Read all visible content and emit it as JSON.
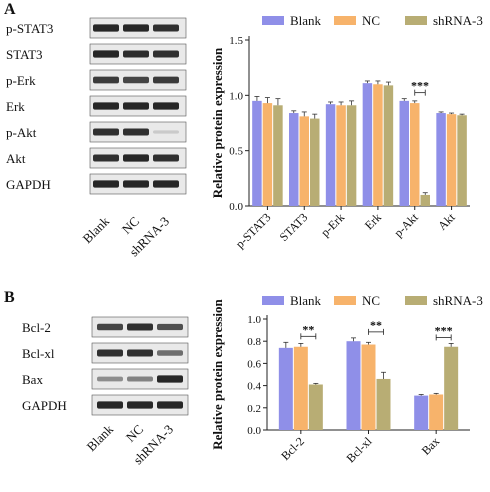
{
  "panels": {
    "a_label": "A",
    "b_label": "B"
  },
  "colors": {
    "blank": "#8f8fe8",
    "nc": "#f7b36b",
    "shrna": "#b8ad74",
    "blot_bg": "#e9e9e9",
    "band": "#1c1c1c"
  },
  "blot_a": {
    "rows": [
      "p-STAT3",
      "STAT3",
      "p-Erk",
      "Erk",
      "p-Akt",
      "Akt",
      "GAPDH"
    ],
    "lanes": [
      "Blank",
      "NC",
      "shRNA-3"
    ],
    "intensity": [
      [
        0.95,
        0.95,
        0.9
      ],
      [
        0.95,
        0.92,
        0.9
      ],
      [
        0.85,
        0.8,
        0.85
      ],
      [
        0.95,
        0.95,
        0.95
      ],
      [
        0.9,
        0.9,
        0.15
      ],
      [
        0.9,
        0.95,
        0.9
      ],
      [
        0.95,
        0.95,
        0.95
      ]
    ]
  },
  "blot_b": {
    "rows": [
      "Bcl-2",
      "Bcl-xl",
      "Bax",
      "GAPDH"
    ],
    "lanes": [
      "Blank",
      "NC",
      "shRNA-3"
    ],
    "intensity": [
      [
        0.8,
        0.9,
        0.75
      ],
      [
        0.9,
        0.9,
        0.6
      ],
      [
        0.45,
        0.5,
        0.95
      ],
      [
        0.95,
        0.95,
        0.95
      ]
    ]
  },
  "chart_data": [
    {
      "type": "bar",
      "title": "",
      "xlabel": "",
      "ylabel": "Relative protein expression",
      "ylim": [
        0,
        1.5
      ],
      "yticks": [
        "0.0",
        "0.5",
        "1.0",
        "1.5"
      ],
      "categories": [
        "p-STAT3",
        "STAT3",
        "p-Erk",
        "Erk",
        "p-Akt",
        "Akt"
      ],
      "series": [
        {
          "name": "Blank",
          "values": [
            0.95,
            0.84,
            0.92,
            1.11,
            0.95,
            0.84
          ],
          "errors": [
            0.04,
            0.02,
            0.02,
            0.02,
            0.02,
            0.01
          ]
        },
        {
          "name": "NC",
          "values": [
            0.93,
            0.81,
            0.91,
            1.1,
            0.93,
            0.83
          ],
          "errors": [
            0.05,
            0.04,
            0.03,
            0.03,
            0.02,
            0.01
          ]
        },
        {
          "name": "shRNA-3",
          "values": [
            0.91,
            0.79,
            0.91,
            1.09,
            0.1,
            0.82
          ],
          "errors": [
            0.06,
            0.04,
            0.04,
            0.03,
            0.02,
            0.01
          ]
        }
      ],
      "annotations": [
        {
          "category": "p-Akt",
          "text": "***"
        }
      ],
      "legend": "top"
    },
    {
      "type": "bar",
      "title": "",
      "xlabel": "",
      "ylabel": "Relative protein expression",
      "ylim": [
        0,
        1.0
      ],
      "yticks": [
        "0.0",
        "0.2",
        "0.4",
        "0.6",
        "0.8",
        "1.0"
      ],
      "categories": [
        "Bcl-2",
        "Bcl-xl",
        "Bax"
      ],
      "series": [
        {
          "name": "Blank",
          "values": [
            0.74,
            0.8,
            0.31
          ],
          "errors": [
            0.05,
            0.03,
            0.01
          ]
        },
        {
          "name": "NC",
          "values": [
            0.75,
            0.77,
            0.32
          ],
          "errors": [
            0.03,
            0.02,
            0.01
          ]
        },
        {
          "name": "shRNA-3",
          "values": [
            0.41,
            0.46,
            0.75
          ],
          "errors": [
            0.01,
            0.06,
            0.03
          ]
        }
      ],
      "annotations": [
        {
          "category": "Bcl-2",
          "text": "**"
        },
        {
          "category": "Bcl-xl",
          "text": "**"
        },
        {
          "category": "Bax",
          "text": "***"
        }
      ],
      "legend": "top"
    }
  ]
}
